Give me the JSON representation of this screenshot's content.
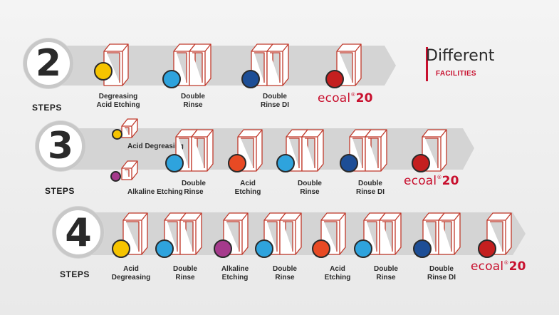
{
  "header": {
    "title": "Different",
    "subtitle": "FACILITIES"
  },
  "colors": {
    "yellow": "#f6c400",
    "blue": "#2ea3dd",
    "navy": "#1d4e96",
    "red": "#c41f1f",
    "orange": "#e84a24",
    "magenta": "#a53a8c",
    "tank_stroke": "#c0392b",
    "brand": "#c8102e",
    "band": "#d3d3d3"
  },
  "rows": [
    {
      "number": "2",
      "steps_label": "STEPS",
      "stages": [
        {
          "label": [
            "Degreasing",
            "Acid Etching"
          ],
          "color": "yellow",
          "icon": "single-tank-icon"
        },
        {
          "label": [
            "Double",
            "Rinse"
          ],
          "color": "blue",
          "icon": "double-tank-icon"
        },
        {
          "label": [
            "Double",
            "Rinse DI"
          ],
          "color": "navy",
          "icon": "double-tank-icon"
        },
        {
          "label": [],
          "color": "red",
          "icon": "single-tank-icon",
          "brand": "ecoal",
          "brand_sup": "®",
          "brand_num": "20"
        }
      ]
    },
    {
      "number": "3",
      "steps_label": "STEPS",
      "stages": [
        {
          "label": [
            "Acid Degreasing"
          ],
          "color": "yellow",
          "icon": "small-tank-icon"
        },
        {
          "label": [
            "Alkaline Etching"
          ],
          "color": "magenta",
          "icon": "small-tank-icon"
        },
        {
          "label": [
            "Double",
            "Rinse"
          ],
          "color": "blue",
          "icon": "double-tank-icon"
        },
        {
          "label": [
            "Acid",
            "Etching"
          ],
          "color": "orange",
          "icon": "single-tank-icon"
        },
        {
          "label": [
            "Double",
            "Rinse"
          ],
          "color": "blue",
          "icon": "double-tank-icon"
        },
        {
          "label": [
            "Double",
            "Rinse DI"
          ],
          "color": "navy",
          "icon": "double-tank-icon"
        },
        {
          "label": [],
          "color": "red",
          "icon": "single-tank-icon",
          "brand": "ecoal",
          "brand_sup": "®",
          "brand_num": "20"
        }
      ]
    },
    {
      "number": "4",
      "steps_label": "STEPS",
      "stages": [
        {
          "label": [
            "Acid",
            "Degreasing"
          ],
          "color": "yellow",
          "icon": "single-tank-icon"
        },
        {
          "label": [
            "Double",
            "Rinse"
          ],
          "color": "blue",
          "icon": "double-tank-icon"
        },
        {
          "label": [
            "Alkaline",
            "Etching"
          ],
          "color": "magenta",
          "icon": "single-tank-icon"
        },
        {
          "label": [
            "Double",
            "Rinse"
          ],
          "color": "blue",
          "icon": "double-tank-icon"
        },
        {
          "label": [
            "Acid",
            "Etching"
          ],
          "color": "orange",
          "icon": "single-tank-icon"
        },
        {
          "label": [
            "Double",
            "Rinse"
          ],
          "color": "blue",
          "icon": "double-tank-icon"
        },
        {
          "label": [
            "Double",
            "Rinse DI"
          ],
          "color": "navy",
          "icon": "double-tank-icon"
        },
        {
          "label": [],
          "color": "red",
          "icon": "single-tank-icon",
          "brand": "ecoal",
          "brand_sup": "®",
          "brand_num": "20"
        }
      ]
    }
  ]
}
